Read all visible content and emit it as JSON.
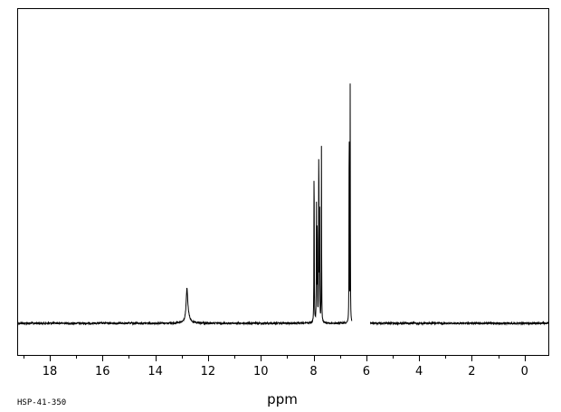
{
  "chart_data": {
    "type": "line",
    "title": "",
    "xlabel": "ppm",
    "ylabel": "",
    "xlim": [
      19.2,
      -0.9
    ],
    "ylim": [
      -0.1,
      1.0
    ],
    "x_reversed": true,
    "grid": false,
    "x_ticks": [
      18,
      16,
      14,
      12,
      10,
      8,
      6,
      4,
      2,
      0
    ],
    "x_minor_step": 1,
    "baseline_gaps": [
      [
        6.55,
        5.85
      ]
    ],
    "series": [
      {
        "peaks": [
          {
            "ppm": 12.8,
            "height": 0.105,
            "width": 0.035
          },
          {
            "ppm": 12.76,
            "height": 0.02,
            "width": 0.08
          },
          {
            "ppm": 7.98,
            "height": 0.69,
            "width": 0.006
          },
          {
            "ppm": 7.89,
            "height": 0.4,
            "width": 0.006
          },
          {
            "ppm": 7.86,
            "height": 0.43,
            "width": 0.006
          },
          {
            "ppm": 7.8,
            "height": 0.76,
            "width": 0.006
          },
          {
            "ppm": 7.77,
            "height": 0.37,
            "width": 0.006
          },
          {
            "ppm": 7.7,
            "height": 0.62,
            "width": 0.006
          },
          {
            "ppm": 6.65,
            "height": 0.99,
            "width": 0.005
          },
          {
            "ppm": 6.61,
            "height": 0.92,
            "width": 0.005
          }
        ]
      }
    ]
  },
  "footer": {
    "sample_code": "HSP-41-350"
  }
}
